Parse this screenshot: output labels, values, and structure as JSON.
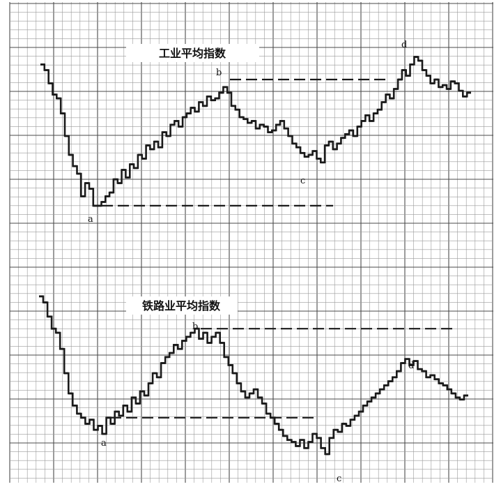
{
  "colors": {
    "grid_minor": "#9a9a9a",
    "grid_major": "#4a4a4a",
    "line": "#1a1a1a",
    "paper": "#ffffff"
  },
  "chart_data": [
    {
      "type": "line",
      "title": "工业平均指数",
      "xlabel": "",
      "ylabel": "",
      "grid": true,
      "point_labels": [
        "a",
        "b",
        "c",
        "d"
      ],
      "series": [
        {
          "values": [
            88,
            85,
            78,
            72,
            70,
            62,
            50,
            40,
            34,
            30,
            18,
            25,
            22,
            13,
            13,
            15,
            18,
            20,
            27,
            25,
            32,
            28,
            35,
            33,
            40,
            38,
            45,
            43,
            47,
            44,
            52,
            50,
            56,
            58,
            55,
            60,
            62,
            65,
            63,
            68,
            66,
            71,
            69,
            70,
            73,
            76,
            73,
            66,
            64,
            60,
            59,
            57,
            58,
            54,
            56,
            55,
            52,
            53,
            56,
            58,
            54,
            50,
            46,
            44,
            41,
            39,
            40,
            42,
            38,
            36,
            45,
            47,
            43,
            46,
            49,
            51,
            53,
            50,
            55,
            58,
            61,
            58,
            62,
            64,
            68,
            72,
            70,
            75,
            80,
            85,
            82,
            88,
            92,
            90,
            85,
            82,
            78,
            80,
            76,
            77,
            75,
            79,
            78,
            74,
            71,
            73
          ]
        },
        {
          "name": "",
          "values": []
        }
      ],
      "reference_lines": [
        {
          "label": "b",
          "level": 80
        },
        {
          "label": "a",
          "level": 13
        }
      ]
    },
    {
      "type": "line",
      "title": "铁路业平均指数",
      "xlabel": "",
      "ylabel": "",
      "grid": true,
      "point_labels": [
        "a",
        "b",
        "c",
        "d"
      ],
      "series": [
        {
          "values": [
            88,
            85,
            78,
            72,
            70,
            62,
            50,
            40,
            34,
            30,
            28,
            25,
            27,
            22,
            24,
            20,
            28,
            25,
            31,
            29,
            34,
            31,
            38,
            35,
            41,
            39,
            45,
            50,
            48,
            55,
            58,
            60,
            64,
            62,
            66,
            68,
            70,
            72,
            67,
            70,
            65,
            68,
            70,
            65,
            58,
            54,
            50,
            45,
            41,
            38,
            40,
            42,
            38,
            35,
            30,
            28,
            25,
            22,
            19,
            17,
            16,
            14,
            17,
            13,
            16,
            20,
            18,
            13,
            10,
            18,
            22,
            21,
            25,
            24,
            27,
            29,
            31,
            34,
            36,
            38,
            40,
            42,
            44,
            46,
            48,
            51,
            55,
            57,
            54,
            56,
            52,
            51,
            48,
            49,
            47,
            45,
            44,
            42,
            40,
            38,
            37,
            39
          ]
        },
        {
          "name": "",
          "values": []
        }
      ],
      "reference_lines": [
        {
          "label": "b",
          "level": 72
        },
        {
          "label": "a",
          "level": 28
        }
      ]
    }
  ]
}
